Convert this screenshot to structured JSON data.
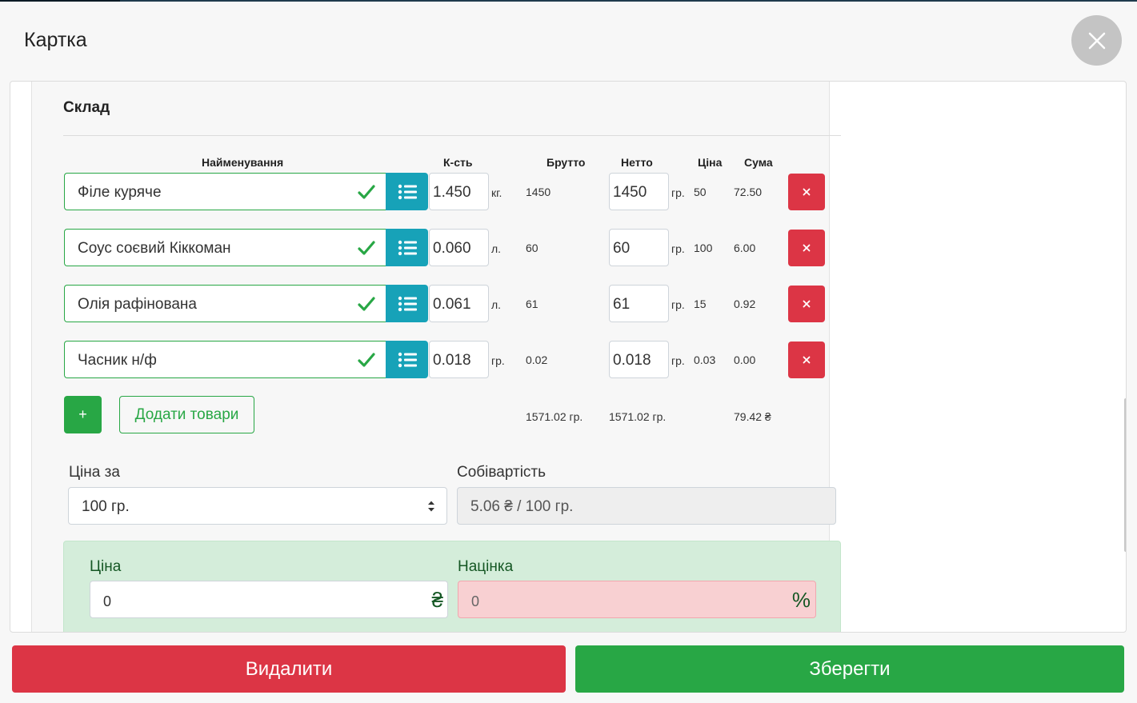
{
  "modal": {
    "title": "Картка"
  },
  "warehouse": {
    "section_title": "Склад",
    "columns": {
      "name": "Найменування",
      "qty": "К-сть",
      "brutto": "Брутто",
      "netto": "Нетто",
      "price": "Ціна",
      "sum": "Сума"
    },
    "rows": [
      {
        "name": "Філе куряче",
        "qty": "1.450",
        "qty_unit": "кг.",
        "brutto": "1450",
        "netto": "1450",
        "netto_unit": "гр.",
        "price": "50",
        "sum": "72.50",
        "delete_label": "×"
      },
      {
        "name": "Соус соєвий Кіккоман",
        "qty": "0.060",
        "qty_unit": "л.",
        "brutto": "60",
        "netto": "60",
        "netto_unit": "гр.",
        "price": "100",
        "sum": "6.00",
        "delete_label": "×"
      },
      {
        "name": "Олія рафінована",
        "qty": "0.061",
        "qty_unit": "л.",
        "brutto": "61",
        "netto": "61",
        "netto_unit": "гр.",
        "price": "15",
        "sum": "0.92",
        "delete_label": "×"
      },
      {
        "name": "Часник н/ф",
        "qty": "0.018",
        "qty_unit": "гр.",
        "brutto": "0.02",
        "netto": "0.018",
        "netto_unit": "гр.",
        "price": "0.03",
        "sum": "0.00",
        "delete_label": "×"
      }
    ],
    "add_label": "+",
    "add_goods_label": "Додати товари",
    "totals": {
      "brutto": "1571.02 гр.",
      "netto": "1571.02 гр.",
      "sum": "79.42 ₴"
    }
  },
  "pricing": {
    "price_per_label": "Ціна за",
    "price_per_value": "100 гр.",
    "cost_label": "Собівартість",
    "cost_value": "5.06 ₴ / 100 гр.",
    "price_label": "Ціна",
    "price_value": "0",
    "currency_symbol": "₴",
    "markup_label": "Націнка",
    "markup_value": "0",
    "percent_symbol": "%"
  },
  "actions": {
    "delete_label": "Видалити",
    "save_label": "Зберегти"
  },
  "colors": {
    "success": "#28a745",
    "danger": "#dc3545",
    "info": "#17a2b8"
  }
}
